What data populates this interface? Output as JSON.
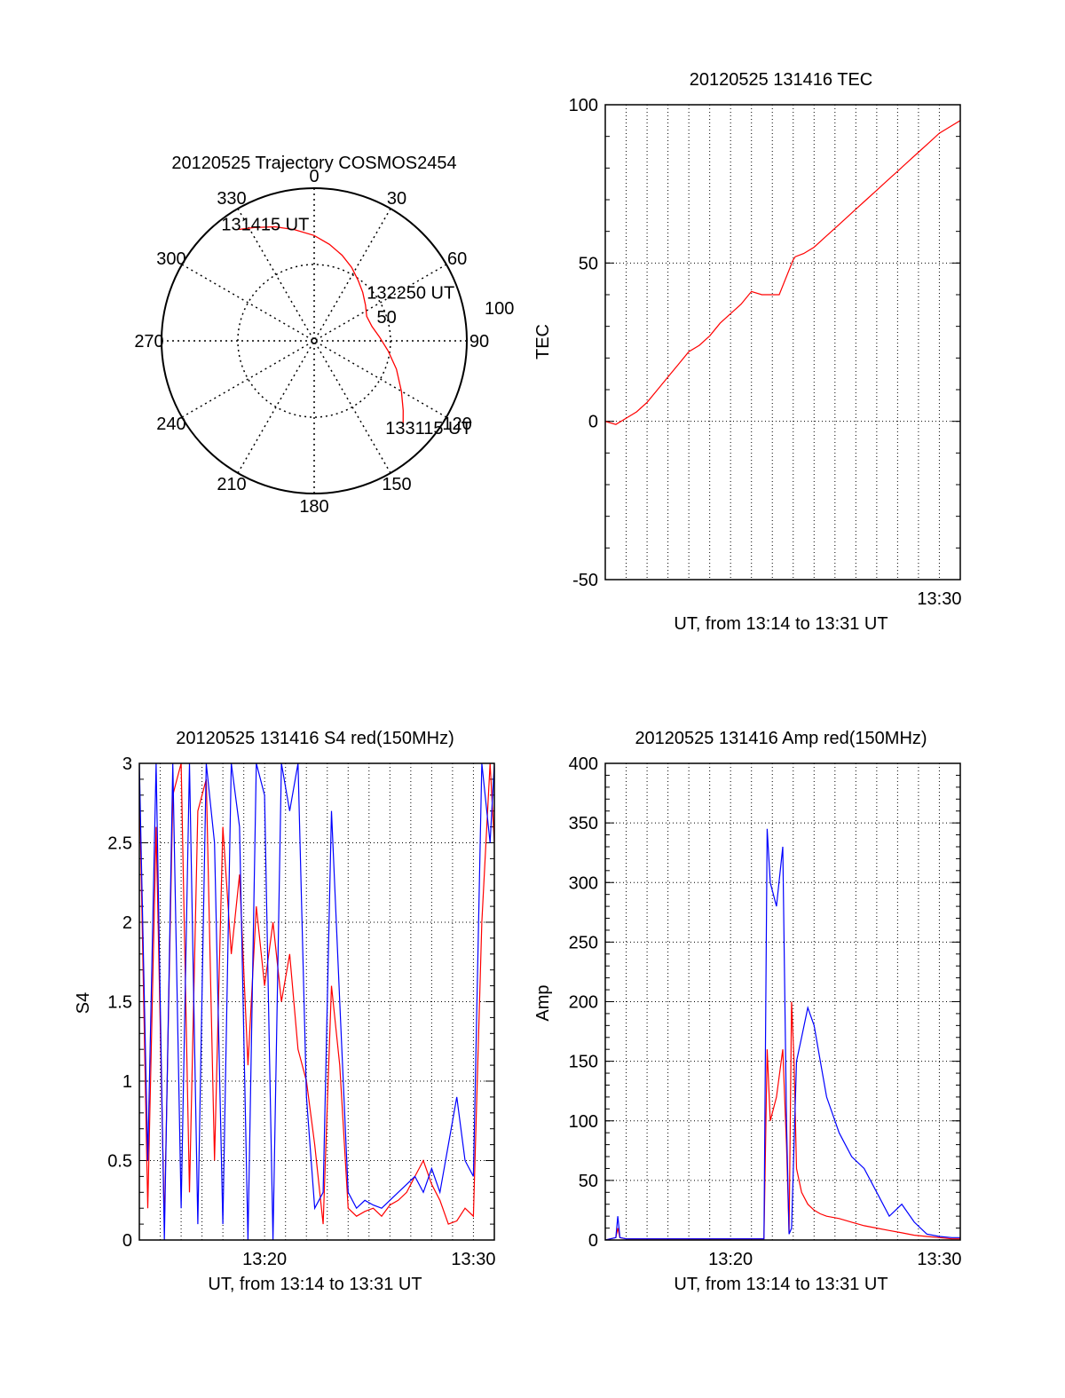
{
  "figure": {
    "background": "#ffffff"
  },
  "chart_data": [
    {
      "type": "polar",
      "title": "20120525 Trajectory COSMOS2454",
      "angle_labels": [
        "0",
        "30",
        "60",
        "90",
        "120",
        "150",
        "180",
        "210",
        "240",
        "270",
        "300",
        "330"
      ],
      "angle_values": [
        0,
        30,
        60,
        90,
        120,
        150,
        180,
        210,
        240,
        270,
        300,
        330
      ],
      "radial_labels": [
        "50",
        "100"
      ],
      "radial_values": [
        50,
        100
      ],
      "rmax": 100,
      "grid": true,
      "track": {
        "color": "#ff0000",
        "azimuth": [
          326,
          332,
          341,
          350,
          0,
          9,
          18,
          27,
          36,
          45,
          55,
          65,
          76,
          87,
          98,
          109,
          120,
          128,
          134
        ],
        "distance": [
          88,
          84,
          79,
          74,
          69,
          64,
          59,
          54,
          49,
          45,
          41,
          38,
          39,
          43,
          49,
          57,
          66,
          74,
          81
        ]
      },
      "annotations": [
        {
          "text": "131415 UT",
          "azimuth": 326,
          "distance": 88
        },
        {
          "text": "132250 UT",
          "azimuth": 65,
          "distance": 38
        },
        {
          "text": "133115 UT",
          "azimuth": 134,
          "distance": 81
        }
      ]
    },
    {
      "type": "line",
      "title": "20120525 131416 TEC",
      "xlabel": "UT, from 13:14 to 13:31 UT",
      "ylabel": "TEC",
      "xlim": [
        13.2333,
        13.5167
      ],
      "ylim": [
        -50,
        100
      ],
      "yticks": [
        -50,
        0,
        50,
        100
      ],
      "xticks": [
        {
          "value": 13.5,
          "label": "13:30"
        }
      ],
      "grid": true,
      "series": [
        {
          "color": "#ff0000",
          "x": [
            13.2333,
            13.2417,
            13.25,
            13.2583,
            13.2667,
            13.275,
            13.2833,
            13.2917,
            13.3,
            13.3083,
            13.3167,
            13.325,
            13.3333,
            13.3417,
            13.35,
            13.3583,
            13.3667,
            13.3711,
            13.3722,
            13.3833,
            13.385,
            13.3917,
            13.4,
            13.4083,
            13.4167,
            13.425,
            13.4333,
            13.4417,
            13.45,
            13.4583,
            13.4667,
            13.475,
            13.4833,
            13.4917,
            13.5,
            13.5083,
            13.5167
          ],
          "y": [
            0,
            -1,
            1,
            3,
            6,
            10,
            14,
            18,
            22,
            24,
            27,
            31,
            34,
            37,
            41,
            40,
            40,
            40,
            40,
            51,
            52,
            53,
            55,
            58,
            61,
            64,
            67,
            70,
            73,
            76,
            79,
            82,
            85,
            88,
            91,
            93,
            95
          ]
        }
      ]
    },
    {
      "type": "line",
      "title": "20120525 131416 S4 red(150MHz)",
      "xlabel": "UT, from 13:14 to 13:31 UT",
      "ylabel": "S4",
      "xlim": [
        13.2333,
        13.5167
      ],
      "ylim": [
        0,
        3
      ],
      "yticks": [
        0,
        0.5,
        1,
        1.5,
        2,
        2.5,
        3
      ],
      "ytick_labels": [
        "0",
        "0.5",
        "1",
        "1.5",
        "2",
        "2.5",
        "3"
      ],
      "xticks": [
        {
          "value": 13.3333,
          "label": "13:20"
        },
        {
          "value": 13.5,
          "label": "13:30"
        }
      ],
      "grid": true,
      "series": [
        {
          "color": "#ff0000",
          "x": [
            13.2333,
            13.24,
            13.2467,
            13.2533,
            13.26,
            13.2667,
            13.2733,
            13.28,
            13.2867,
            13.2933,
            13.3,
            13.3067,
            13.3133,
            13.32,
            13.3267,
            13.3333,
            13.34,
            13.3467,
            13.3533,
            13.36,
            13.3667,
            13.3733,
            13.38,
            13.3867,
            13.3933,
            13.4,
            13.4067,
            13.4133,
            13.42,
            13.4267,
            13.4333,
            13.44,
            13.4467,
            13.4533,
            13.46,
            13.4667,
            13.4733,
            13.48,
            13.4867,
            13.4933,
            13.5,
            13.5067,
            13.5133,
            13.5167
          ],
          "y": [
            2.9,
            0.2,
            2.6,
            0.1,
            2.8,
            3.0,
            0.3,
            2.7,
            2.9,
            0.5,
            2.6,
            1.8,
            2.3,
            1.1,
            2.1,
            1.6,
            2.0,
            1.5,
            1.8,
            1.2,
            1.0,
            0.6,
            0.1,
            1.6,
            1.1,
            0.2,
            0.15,
            0.18,
            0.2,
            0.15,
            0.22,
            0.25,
            0.3,
            0.4,
            0.5,
            0.35,
            0.25,
            0.1,
            0.12,
            0.2,
            0.15,
            2.0,
            3.0,
            2.5
          ]
        },
        {
          "color": "#0000ff",
          "x": [
            13.2333,
            13.24,
            13.2467,
            13.2533,
            13.26,
            13.2667,
            13.2733,
            13.28,
            13.2867,
            13.2933,
            13.3,
            13.3067,
            13.3133,
            13.32,
            13.3267,
            13.3333,
            13.34,
            13.3467,
            13.3533,
            13.36,
            13.3667,
            13.3733,
            13.38,
            13.3867,
            13.3933,
            13.4,
            13.4067,
            13.4133,
            13.42,
            13.4267,
            13.4333,
            13.44,
            13.4467,
            13.4533,
            13.46,
            13.4667,
            13.4733,
            13.48,
            13.4867,
            13.4933,
            13.5,
            13.5067,
            13.5133,
            13.5167
          ],
          "y": [
            3.0,
            0.5,
            3.0,
            0.0,
            3.0,
            0.2,
            3.0,
            0.1,
            3.0,
            2.5,
            0.1,
            3.0,
            2.6,
            0.0,
            3.0,
            2.8,
            0.0,
            3.0,
            2.7,
            3.0,
            0.9,
            0.2,
            0.3,
            2.7,
            1.5,
            0.3,
            0.2,
            0.25,
            0.22,
            0.2,
            0.25,
            0.3,
            0.35,
            0.4,
            0.3,
            0.45,
            0.3,
            0.6,
            0.9,
            0.5,
            0.4,
            3.0,
            2.5,
            3.0
          ]
        }
      ]
    },
    {
      "type": "line",
      "title": "20120525 131416 Amp red(150MHz)",
      "xlabel": "UT, from 13:14 to 13:31 UT",
      "ylabel": "Amp",
      "xlim": [
        13.2333,
        13.5167
      ],
      "ylim": [
        0,
        400
      ],
      "yticks": [
        0,
        50,
        100,
        150,
        200,
        250,
        300,
        350,
        400
      ],
      "xticks": [
        {
          "value": 13.3333,
          "label": "13:20"
        },
        {
          "value": 13.5,
          "label": "13:30"
        }
      ],
      "grid": true,
      "series": [
        {
          "color": "#ff0000",
          "x": [
            13.2333,
            13.2417,
            13.2433,
            13.245,
            13.25,
            13.3,
            13.36,
            13.3625,
            13.365,
            13.37,
            13.375,
            13.378,
            13.38,
            13.382,
            13.384,
            13.386,
            13.39,
            13.395,
            13.4,
            13.405,
            13.41,
            13.42,
            13.43,
            13.44,
            13.45,
            13.46,
            13.47,
            13.48,
            13.49,
            13.5,
            13.51,
            13.5167
          ],
          "y": [
            0,
            2,
            10,
            2,
            1,
            1,
            1,
            160,
            100,
            120,
            160,
            80,
            5,
            200,
            150,
            60,
            40,
            30,
            25,
            22,
            20,
            18,
            15,
            12,
            10,
            8,
            6,
            4,
            3,
            2,
            1,
            1
          ]
        },
        {
          "color": "#0000ff",
          "x": [
            13.2333,
            13.2417,
            13.2433,
            13.245,
            13.25,
            13.3,
            13.36,
            13.3625,
            13.365,
            13.37,
            13.375,
            13.378,
            13.38,
            13.382,
            13.384,
            13.386,
            13.39,
            13.395,
            13.4,
            13.405,
            13.41,
            13.42,
            13.43,
            13.44,
            13.45,
            13.46,
            13.47,
            13.48,
            13.49,
            13.5,
            13.51,
            13.5167
          ],
          "y": [
            0,
            2,
            20,
            2,
            1,
            1,
            1,
            345,
            300,
            280,
            330,
            100,
            5,
            10,
            80,
            150,
            170,
            195,
            180,
            150,
            120,
            90,
            70,
            60,
            40,
            20,
            30,
            15,
            5,
            3,
            2,
            2
          ]
        }
      ]
    }
  ]
}
